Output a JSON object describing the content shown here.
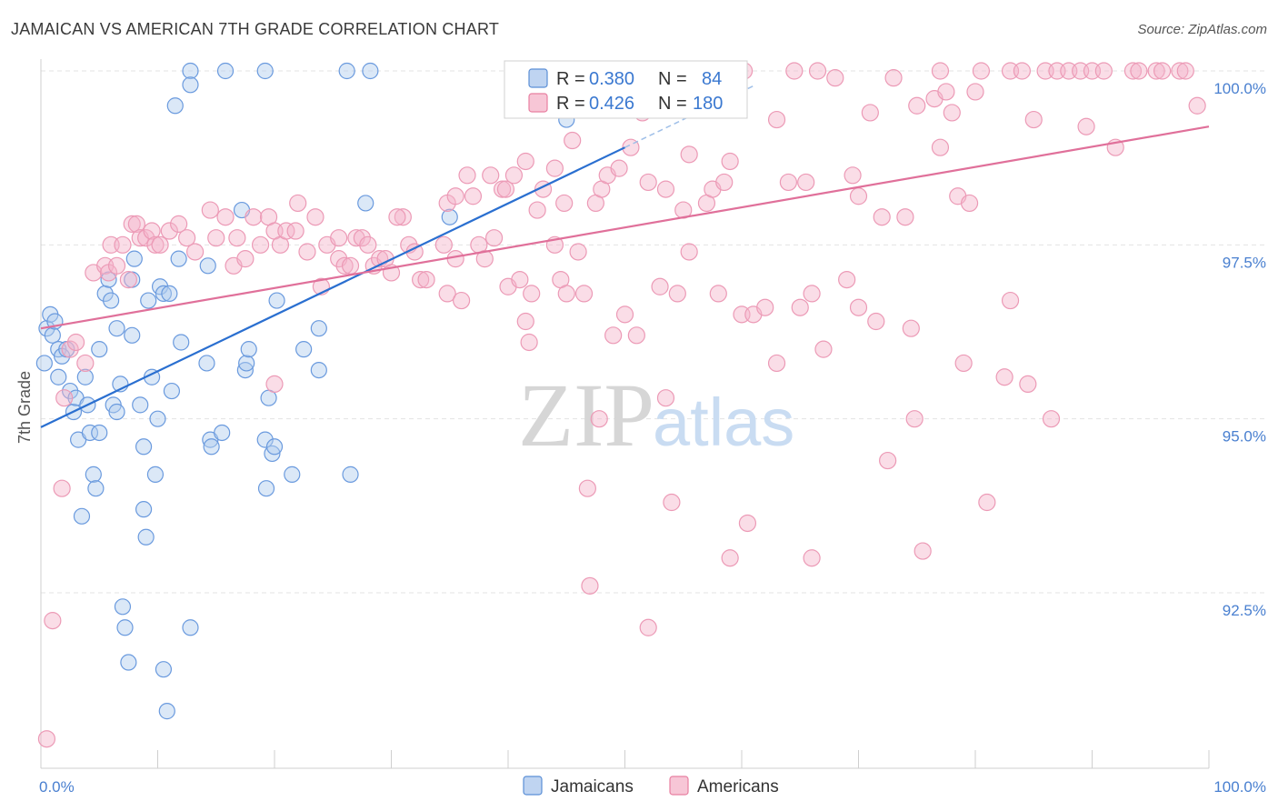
{
  "chart_data": {
    "type": "scatter",
    "title": "JAMAICAN VS AMERICAN 7TH GRADE CORRELATION CHART",
    "source": "Source: ZipAtlas.com",
    "ylabel": "7th Grade",
    "xlim": [
      0,
      100
    ],
    "ylim": [
      90.0,
      100.3
    ],
    "x_tick_labels": [
      "0.0%",
      "100.0%"
    ],
    "y_ticks": [
      {
        "value": 100.0,
        "label": "100.0%"
      },
      {
        "value": 97.5,
        "label": "97.5%"
      },
      {
        "value": 95.0,
        "label": "95.0%"
      },
      {
        "value": 92.5,
        "label": "92.5%"
      }
    ],
    "grid": true,
    "watermark": "ZIPatlas",
    "colors": {
      "jamaicans": "#5b8fd6",
      "americans": "#e87fa1",
      "jam_line": "#2a6fd0",
      "am_line": "#e0709a",
      "tick": "#4a80d0"
    },
    "legend": {
      "rows": [
        {
          "r_label": "R = ",
          "r_value": "0.380",
          "n_label": "N = ",
          "n_value": "84"
        },
        {
          "r_label": "R = ",
          "r_value": "0.426",
          "n_label": "N = ",
          "n_value": "180"
        }
      ]
    },
    "series": [
      {
        "name": "Jamaicans",
        "trend": {
          "x": [
            0,
            50
          ],
          "y": [
            94.88,
            98.9
          ]
        },
        "points": [
          [
            0.3,
            95.8
          ],
          [
            0.5,
            96.3
          ],
          [
            0.8,
            96.5
          ],
          [
            1.0,
            96.2
          ],
          [
            1.2,
            96.4
          ],
          [
            1.5,
            96.0
          ],
          [
            1.5,
            95.6
          ],
          [
            1.8,
            95.9
          ],
          [
            2.2,
            96.0
          ],
          [
            2.5,
            95.4
          ],
          [
            2.8,
            95.1
          ],
          [
            3.0,
            95.3
          ],
          [
            3.2,
            94.7
          ],
          [
            3.5,
            93.6
          ],
          [
            3.8,
            95.6
          ],
          [
            4.0,
            95.2
          ],
          [
            4.2,
            94.8
          ],
          [
            4.5,
            94.2
          ],
          [
            4.7,
            94.0
          ],
          [
            5.0,
            94.8
          ],
          [
            5.0,
            96.0
          ],
          [
            5.5,
            96.8
          ],
          [
            5.8,
            97.0
          ],
          [
            6.0,
            96.7
          ],
          [
            6.2,
            95.2
          ],
          [
            6.5,
            95.1
          ],
          [
            6.5,
            96.3
          ],
          [
            6.8,
            95.5
          ],
          [
            7.0,
            92.3
          ],
          [
            7.2,
            92.0
          ],
          [
            7.5,
            91.5
          ],
          [
            7.8,
            96.2
          ],
          [
            7.8,
            97.0
          ],
          [
            8.0,
            97.3
          ],
          [
            8.5,
            95.2
          ],
          [
            8.8,
            94.6
          ],
          [
            8.8,
            93.7
          ],
          [
            9.0,
            93.3
          ],
          [
            9.2,
            96.7
          ],
          [
            9.5,
            95.6
          ],
          [
            9.8,
            94.2
          ],
          [
            10.0,
            95.0
          ],
          [
            10.2,
            96.9
          ],
          [
            10.5,
            96.8
          ],
          [
            10.5,
            91.4
          ],
          [
            10.8,
            90.8
          ],
          [
            11.0,
            96.8
          ],
          [
            11.2,
            95.4
          ],
          [
            11.5,
            99.5
          ],
          [
            11.8,
            97.3
          ],
          [
            12.0,
            96.1
          ],
          [
            12.8,
            100.0
          ],
          [
            12.8,
            99.8
          ],
          [
            12.8,
            92.0
          ],
          [
            14.2,
            95.8
          ],
          [
            14.3,
            97.2
          ],
          [
            14.5,
            94.7
          ],
          [
            14.6,
            94.6
          ],
          [
            15.5,
            94.8
          ],
          [
            15.8,
            100.0
          ],
          [
            17.2,
            98.0
          ],
          [
            17.5,
            95.7
          ],
          [
            17.6,
            95.8
          ],
          [
            17.8,
            96.0
          ],
          [
            19.2,
            100.0
          ],
          [
            19.2,
            94.7
          ],
          [
            19.3,
            94.0
          ],
          [
            19.5,
            95.3
          ],
          [
            19.8,
            94.5
          ],
          [
            20.0,
            94.6
          ],
          [
            20.2,
            96.7
          ],
          [
            21.5,
            94.2
          ],
          [
            22.5,
            96.0
          ],
          [
            23.8,
            95.7
          ],
          [
            23.8,
            96.3
          ],
          [
            26.2,
            100.0
          ],
          [
            26.5,
            94.2
          ],
          [
            27.8,
            98.1
          ],
          [
            28.2,
            100.0
          ],
          [
            35.0,
            97.9
          ],
          [
            45.0,
            99.3
          ]
        ]
      },
      {
        "name": "Americans",
        "trend": {
          "x": [
            0,
            100
          ],
          "y": [
            96.3,
            99.2
          ]
        },
        "points": [
          [
            0.5,
            90.4
          ],
          [
            1.0,
            92.1
          ],
          [
            1.8,
            94.0
          ],
          [
            2.0,
            95.3
          ],
          [
            2.5,
            96.0
          ],
          [
            3.0,
            96.1
          ],
          [
            3.8,
            95.8
          ],
          [
            4.5,
            97.1
          ],
          [
            5.5,
            97.2
          ],
          [
            5.8,
            97.1
          ],
          [
            6.0,
            97.5
          ],
          [
            6.5,
            97.2
          ],
          [
            7.0,
            97.5
          ],
          [
            7.5,
            97.0
          ],
          [
            7.8,
            97.8
          ],
          [
            8.2,
            97.8
          ],
          [
            8.5,
            97.6
          ],
          [
            9.0,
            97.6
          ],
          [
            9.5,
            97.7
          ],
          [
            9.8,
            97.5
          ],
          [
            10.2,
            97.5
          ],
          [
            11.0,
            97.7
          ],
          [
            11.8,
            97.8
          ],
          [
            12.5,
            97.6
          ],
          [
            13.2,
            97.4
          ],
          [
            14.5,
            98.0
          ],
          [
            15.0,
            97.6
          ],
          [
            15.8,
            97.9
          ],
          [
            16.5,
            97.2
          ],
          [
            16.8,
            97.6
          ],
          [
            17.5,
            97.3
          ],
          [
            18.2,
            97.9
          ],
          [
            18.8,
            97.5
          ],
          [
            19.5,
            97.9
          ],
          [
            20.0,
            97.7
          ],
          [
            20.5,
            97.5
          ],
          [
            21.0,
            97.7
          ],
          [
            21.8,
            97.7
          ],
          [
            22.0,
            98.1
          ],
          [
            22.8,
            97.4
          ],
          [
            23.5,
            97.9
          ],
          [
            24.0,
            96.9
          ],
          [
            24.5,
            97.5
          ],
          [
            25.5,
            97.3
          ],
          [
            26.0,
            97.2
          ],
          [
            26.5,
            97.2
          ],
          [
            27.0,
            97.6
          ],
          [
            27.5,
            97.6
          ],
          [
            28.0,
            97.5
          ],
          [
            28.5,
            97.2
          ],
          [
            29.0,
            97.3
          ],
          [
            29.5,
            97.3
          ],
          [
            30.0,
            97.1
          ],
          [
            31.0,
            97.9
          ],
          [
            31.5,
            97.5
          ],
          [
            32.0,
            97.4
          ],
          [
            32.5,
            97.0
          ],
          [
            33.0,
            97.0
          ],
          [
            34.5,
            97.5
          ],
          [
            34.8,
            98.1
          ],
          [
            34.8,
            96.8
          ],
          [
            35.5,
            98.2
          ],
          [
            35.5,
            97.3
          ],
          [
            36.0,
            96.7
          ],
          [
            37.0,
            98.2
          ],
          [
            37.5,
            97.5
          ],
          [
            38.0,
            97.3
          ],
          [
            38.5,
            98.5
          ],
          [
            38.8,
            97.6
          ],
          [
            39.5,
            98.3
          ],
          [
            39.8,
            98.3
          ],
          [
            40.0,
            96.9
          ],
          [
            40.5,
            98.5
          ],
          [
            41.0,
            97.0
          ],
          [
            41.5,
            96.4
          ],
          [
            41.8,
            96.1
          ],
          [
            42.0,
            96.8
          ],
          [
            42.5,
            98.0
          ],
          [
            43.0,
            98.3
          ],
          [
            44.0,
            97.5
          ],
          [
            44.5,
            97.0
          ],
          [
            44.8,
            98.1
          ],
          [
            45.0,
            96.8
          ],
          [
            45.5,
            99.0
          ],
          [
            46.0,
            97.4
          ],
          [
            46.5,
            96.8
          ],
          [
            46.8,
            94.0
          ],
          [
            47.0,
            92.6
          ],
          [
            47.5,
            98.1
          ],
          [
            47.8,
            95.0
          ],
          [
            48.0,
            98.3
          ],
          [
            48.5,
            98.5
          ],
          [
            49.0,
            96.2
          ],
          [
            49.5,
            98.6
          ],
          [
            50.0,
            96.5
          ],
          [
            50.5,
            98.9
          ],
          [
            51.0,
            96.2
          ],
          [
            51.5,
            99.4
          ],
          [
            52.0,
            98.4
          ],
          [
            53.0,
            96.9
          ],
          [
            53.5,
            98.3
          ],
          [
            53.5,
            95.3
          ],
          [
            54.0,
            93.8
          ],
          [
            54.5,
            96.8
          ],
          [
            55.0,
            98.0
          ],
          [
            55.5,
            97.4
          ],
          [
            57.0,
            98.1
          ],
          [
            57.5,
            98.3
          ],
          [
            58.0,
            96.8
          ],
          [
            58.5,
            98.4
          ],
          [
            60.0,
            96.5
          ],
          [
            60.2,
            100.0
          ],
          [
            60.5,
            93.5
          ],
          [
            61.0,
            96.5
          ],
          [
            62.0,
            96.6
          ],
          [
            63.0,
            95.8
          ],
          [
            64.5,
            100.0
          ],
          [
            65.0,
            96.6
          ],
          [
            65.5,
            98.4
          ],
          [
            66.0,
            96.8
          ],
          [
            66.5,
            100.0
          ],
          [
            67.0,
            96.0
          ],
          [
            68.0,
            99.9
          ],
          [
            69.0,
            97.0
          ],
          [
            70.0,
            98.2
          ],
          [
            70.0,
            96.6
          ],
          [
            71.5,
            96.4
          ],
          [
            72.0,
            97.9
          ],
          [
            73.0,
            99.9
          ],
          [
            74.5,
            96.3
          ],
          [
            74.8,
            95.0
          ],
          [
            75.5,
            93.1
          ],
          [
            76.5,
            99.6
          ],
          [
            77.0,
            100.0
          ],
          [
            77.5,
            99.7
          ],
          [
            78.0,
            99.4
          ],
          [
            78.5,
            98.2
          ],
          [
            79.0,
            95.8
          ],
          [
            79.5,
            98.1
          ],
          [
            80.0,
            99.7
          ],
          [
            80.5,
            100.0
          ],
          [
            81.0,
            93.8
          ],
          [
            82.5,
            95.6
          ],
          [
            83.0,
            100.0
          ],
          [
            84.0,
            100.0
          ],
          [
            85.0,
            99.3
          ],
          [
            86.0,
            100.0
          ],
          [
            87.0,
            100.0
          ],
          [
            88.0,
            100.0
          ],
          [
            89.0,
            100.0
          ],
          [
            90.0,
            100.0
          ],
          [
            91.0,
            100.0
          ],
          [
            93.5,
            100.0
          ],
          [
            94.0,
            100.0
          ],
          [
            95.5,
            100.0
          ],
          [
            96.0,
            100.0
          ],
          [
            97.5,
            100.0
          ],
          [
            98.0,
            100.0
          ],
          [
            99.0,
            99.5
          ],
          [
            59.0,
            93.0
          ],
          [
            66.0,
            93.0
          ],
          [
            52.0,
            92.0
          ],
          [
            20.0,
            95.5
          ],
          [
            44.0,
            98.6
          ],
          [
            30.5,
            97.9
          ],
          [
            25.5,
            97.6
          ],
          [
            41.5,
            98.7
          ],
          [
            36.5,
            98.5
          ],
          [
            55.5,
            98.8
          ],
          [
            64.0,
            98.4
          ],
          [
            69.5,
            98.5
          ],
          [
            74.0,
            97.9
          ],
          [
            83.0,
            96.7
          ],
          [
            89.5,
            99.2
          ],
          [
            92.0,
            98.9
          ],
          [
            72.5,
            94.4
          ],
          [
            71.0,
            99.4
          ],
          [
            75.0,
            99.5
          ],
          [
            84.5,
            95.5
          ],
          [
            86.5,
            95.0
          ],
          [
            77.0,
            98.9
          ],
          [
            63.0,
            99.3
          ],
          [
            59.0,
            98.7
          ]
        ]
      }
    ]
  }
}
